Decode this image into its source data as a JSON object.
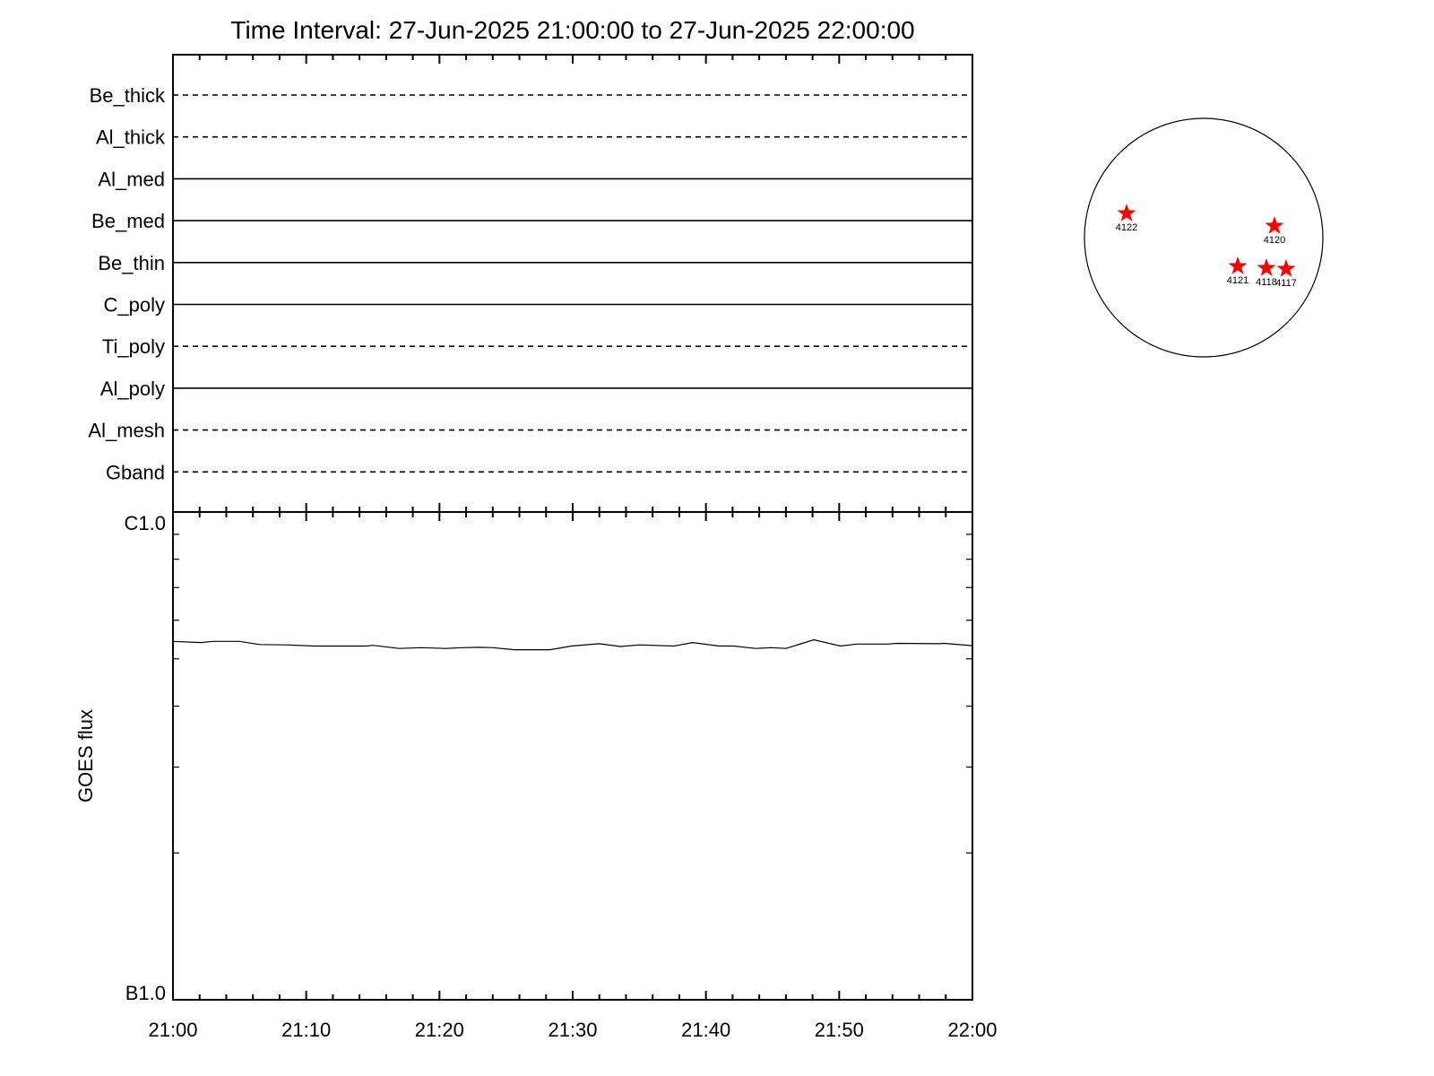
{
  "chart_data": [
    {
      "type": "line",
      "title": "Time Interval: 27-Jun-2025 21:00:00 to 27-Jun-2025 22:00:00",
      "channels": [
        {
          "name": "Be_thick",
          "style": "dashed"
        },
        {
          "name": "Al_thick",
          "style": "dashed"
        },
        {
          "name": "Al_med",
          "style": "solid"
        },
        {
          "name": "Be_med",
          "style": "solid"
        },
        {
          "name": "Be_thin",
          "style": "solid"
        },
        {
          "name": "C_poly",
          "style": "solid"
        },
        {
          "name": "Ti_poly",
          "style": "dashed"
        },
        {
          "name": "Al_poly",
          "style": "solid"
        },
        {
          "name": "Al_mesh",
          "style": "dashed"
        },
        {
          "name": "Gband",
          "style": "dashed"
        }
      ]
    },
    {
      "type": "line",
      "ylabel": "GOES flux",
      "yscale": "log",
      "ylim": [
        1e-07,
        1e-06
      ],
      "ytick_labels": [
        "C1.0",
        "B1.0"
      ],
      "xlim": [
        "21:00",
        "22:00"
      ],
      "xtick_labels": [
        "21:00",
        "21:10",
        "21:20",
        "21:30",
        "21:40",
        "21:50",
        "22:00"
      ],
      "series": [
        {
          "x_minutes_after_21_00": [
            0,
            2.1,
            3,
            5,
            6.5,
            8.5,
            10.6,
            14.5,
            15,
            17,
            18.6,
            20.5,
            21.7,
            23,
            24,
            25.6,
            28.3,
            29.9,
            32,
            33.6,
            35,
            37.6,
            39,
            41,
            42.1,
            43.7,
            44.9,
            46,
            48.1,
            50.1,
            51.3,
            53.6,
            54.4,
            57.5,
            57.9,
            60
          ],
          "y": [
            5.43e-07,
            5.4e-07,
            5.43e-07,
            5.43e-07,
            5.35e-07,
            5.34e-07,
            5.31e-07,
            5.31e-07,
            5.33e-07,
            5.25e-07,
            5.27e-07,
            5.25e-07,
            5.27e-07,
            5.28e-07,
            5.27e-07,
            5.22e-07,
            5.22e-07,
            5.31e-07,
            5.37e-07,
            5.3e-07,
            5.34e-07,
            5.31e-07,
            5.4e-07,
            5.31e-07,
            5.31e-07,
            5.25e-07,
            5.27e-07,
            5.25e-07,
            5.47e-07,
            5.31e-07,
            5.36e-07,
            5.36e-07,
            5.38e-07,
            5.37e-07,
            5.38e-07,
            5.32e-07
          ]
        }
      ]
    },
    {
      "type": "scatter",
      "description_labels": [
        "4122",
        "4120",
        "4121",
        "4118",
        "4117"
      ],
      "marker": "star",
      "marker_color": "#ff0000"
    }
  ]
}
